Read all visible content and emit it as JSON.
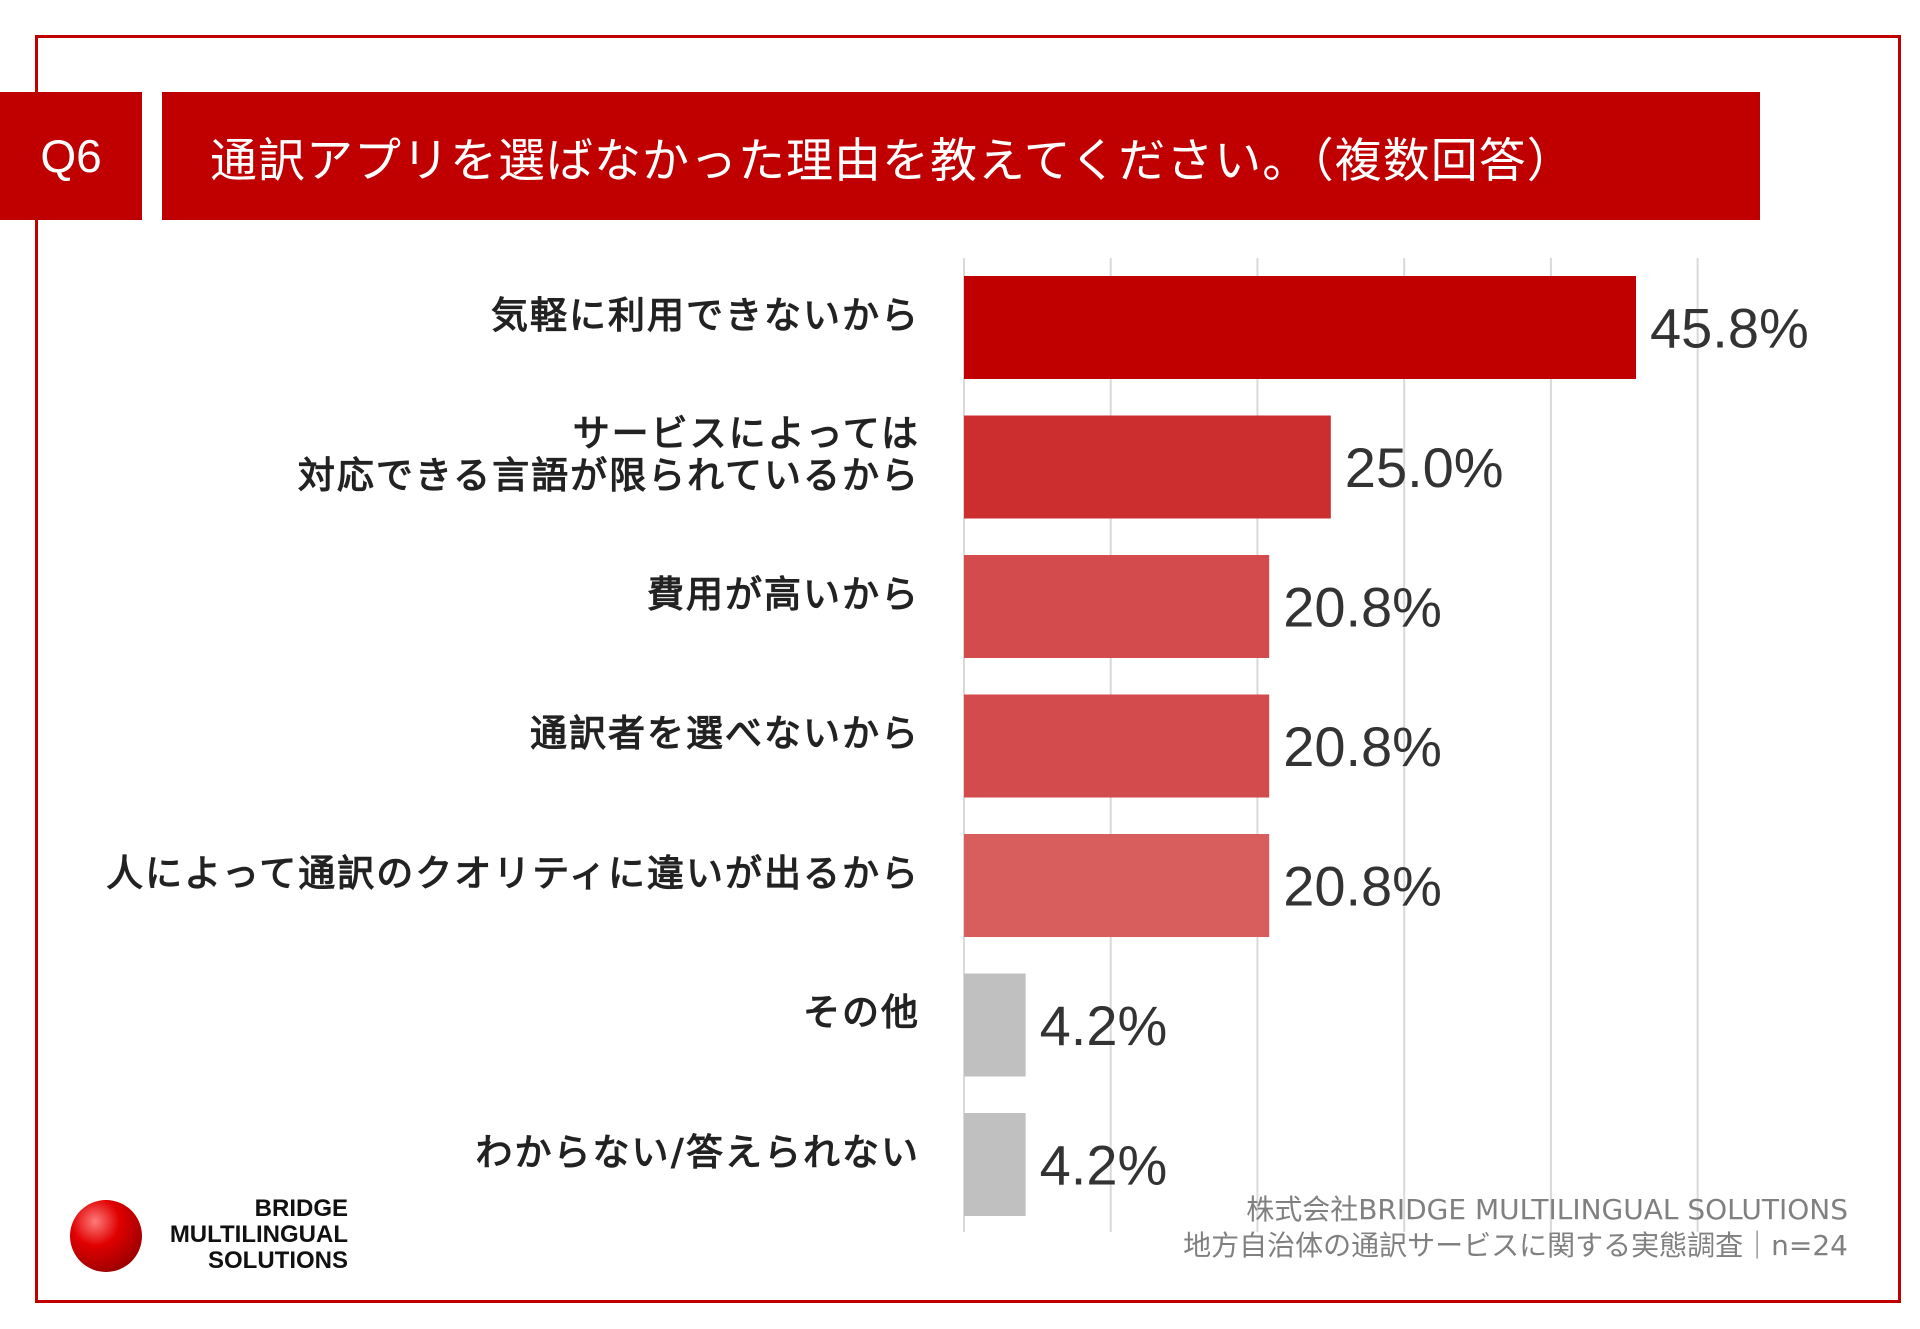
{
  "question": {
    "number": "Q6",
    "title": "通訳アプリを選ばなかった理由を教えてください。（複数回答）"
  },
  "chart_data": {
    "type": "bar",
    "orientation": "horizontal",
    "categories": [
      [
        "気軽に利用できないから"
      ],
      [
        "サービスによっては",
        "対応できる言語が限られているから"
      ],
      [
        "費用が高いから"
      ],
      [
        "通訳者を選べないから"
      ],
      [
        "人によって通訳のクオリティに違いが出るから"
      ],
      [
        "その他"
      ],
      [
        "わからない/答えられない"
      ]
    ],
    "values": [
      45.8,
      25.0,
      20.8,
      20.8,
      20.8,
      4.2,
      4.2
    ],
    "value_labels": [
      "45.8%",
      "25.0%",
      "20.8%",
      "20.8%",
      "20.8%",
      "4.2%",
      "4.2%"
    ],
    "xlim": [
      0,
      50
    ],
    "grid": true,
    "gridline_values": [
      10,
      20,
      30,
      40,
      50
    ],
    "bar_colors": [
      "#c00000",
      "#cc2e30",
      "#d34b4d",
      "#d34b4d",
      "#d75e5c",
      "#c0c0c0",
      "#c0c0c0"
    ]
  },
  "logo": {
    "lines": [
      "BRIDGE",
      "MULTILINGUAL",
      "SOLUTIONS"
    ]
  },
  "source": {
    "line1": "株式会社BRIDGE MULTILINGUAL SOLUTIONS",
    "line2": "地方自治体の通訳サービスに関する実態調査｜n=24"
  }
}
